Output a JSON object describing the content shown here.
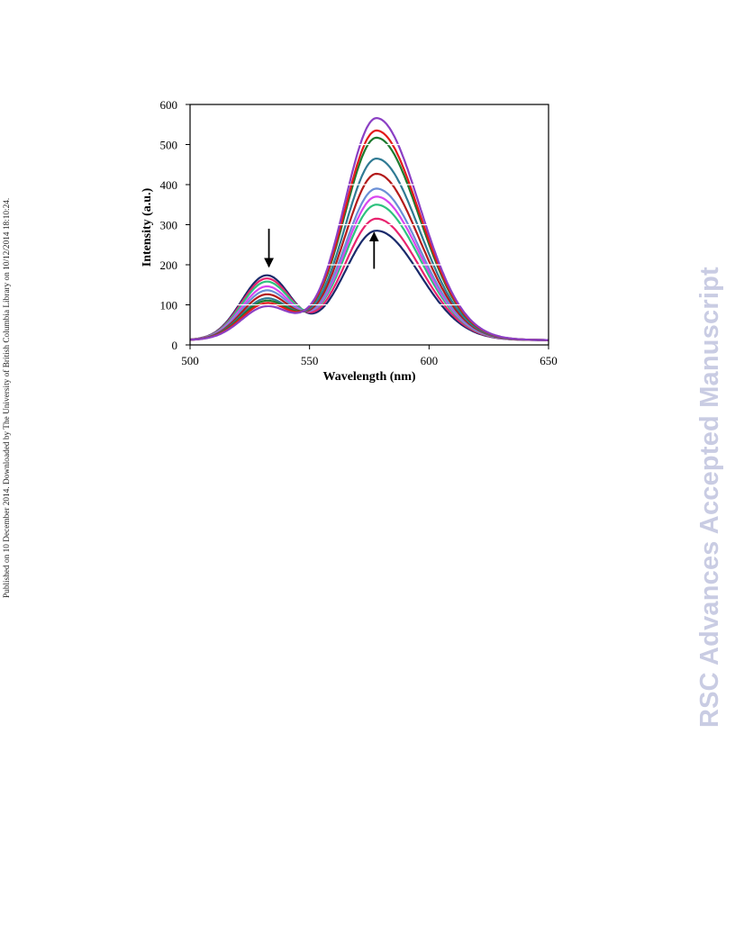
{
  "side_note": "Published on 10 December 2014. Downloaded by The University of British Columbia Library on 10/12/2014 18:10:24.",
  "watermark": "RSC Advances Accepted Manuscript",
  "chart_data": {
    "type": "line",
    "title": "",
    "xlabel": "Wavelength (nm)",
    "ylabel": "Intensity (a.u.)",
    "xlim": [
      500,
      650
    ],
    "ylim": [
      0,
      600
    ],
    "xticks": [
      500,
      550,
      600,
      650
    ],
    "yticks": [
      0,
      100,
      200,
      300,
      400,
      500,
      600
    ],
    "grid": "horizontal-white",
    "legend": "none",
    "series": [
      {
        "color": "#1a2a6b",
        "values": {
          "530": 176,
          "549": 95,
          "578": 283
        }
      },
      {
        "color": "#e8236e",
        "values": {
          "530": 168,
          "549": 96,
          "578": 313
        }
      },
      {
        "color": "#2ec27e",
        "values": {
          "530": 160,
          "549": 97,
          "578": 348
        }
      },
      {
        "color": "#d946ef",
        "values": {
          "530": 148,
          "549": 97,
          "578": 368
        }
      },
      {
        "color": "#6a8fd6",
        "values": {
          "530": 138,
          "549": 98,
          "578": 388
        }
      },
      {
        "color": "#b31b1b",
        "values": {
          "530": 128,
          "549": 98,
          "578": 425
        }
      },
      {
        "color": "#2f7a93",
        "values": {
          "530": 118,
          "549": 99,
          "578": 463
        }
      },
      {
        "color": "#1d7a2e",
        "values": {
          "530": 112,
          "549": 99,
          "578": 515
        }
      },
      {
        "color": "#e31a1a",
        "values": {
          "530": 106,
          "549": 99,
          "578": 533
        }
      },
      {
        "color": "#8b3fc4",
        "values": {
          "530": 98,
          "549": 99,
          "578": 564
        }
      }
    ],
    "annotations": [
      {
        "type": "arrow",
        "direction": "down",
        "x": 533,
        "y_from": 290,
        "y_to": 195
      },
      {
        "type": "arrow",
        "direction": "up",
        "x": 577,
        "y_from": 190,
        "y_to": 280
      }
    ]
  }
}
